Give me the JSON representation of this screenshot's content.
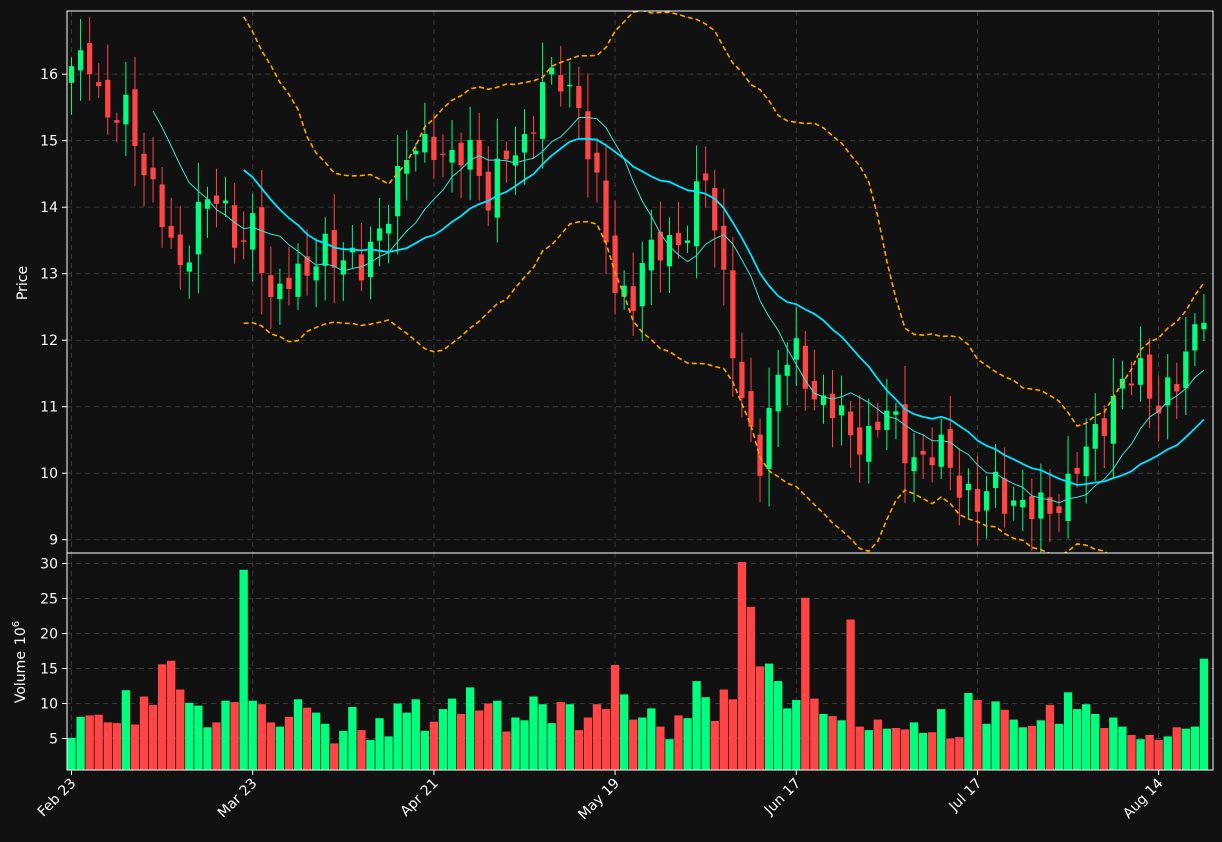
{
  "colors": {
    "background": "#111111",
    "grid": "#3a3a3a",
    "up": "#00ff7f",
    "down": "#ff4545",
    "ma_slow": "#00e5ff",
    "ma_fast": "#40e0d0",
    "bands": "#ffa500",
    "axis": "#ffffff"
  },
  "chart_data": {
    "type": "candlestick",
    "grid": true,
    "price_panel": {
      "ylabel": "Price",
      "yticks": [
        9,
        10,
        11,
        12,
        13,
        14,
        15,
        16
      ],
      "ylim": [
        8.8,
        16.95
      ]
    },
    "volume_panel": {
      "ylabel": "Volume",
      "ylabel_exp": "10",
      "ylabel_sup": "6",
      "yticks": [
        5,
        10,
        15,
        20,
        25,
        30
      ],
      "ylim": [
        0.5,
        31.5
      ]
    },
    "x_labels": [
      "Feb 23",
      "Mar 23",
      "Apr 21",
      "May 19",
      "Jun 17",
      "Jul 17",
      "Aug 14"
    ],
    "x_label_index": [
      0,
      20,
      40,
      60,
      80,
      100,
      120
    ],
    "n_bars": 126,
    "anchors": [
      [
        0,
        16.0
      ],
      [
        2,
        16.3
      ],
      [
        4,
        15.3
      ],
      [
        6,
        15.4
      ],
      [
        8,
        14.7
      ],
      [
        10,
        13.8
      ],
      [
        12,
        13.0
      ],
      [
        14,
        14.0
      ],
      [
        16,
        14.1
      ],
      [
        18,
        13.6
      ],
      [
        20,
        13.7
      ],
      [
        22,
        12.5
      ],
      [
        24,
        13.1
      ],
      [
        26,
        12.9
      ],
      [
        28,
        13.4
      ],
      [
        30,
        13.3
      ],
      [
        32,
        13.0
      ],
      [
        34,
        13.7
      ],
      [
        36,
        14.4
      ],
      [
        38,
        14.9
      ],
      [
        40,
        15.0
      ],
      [
        42,
        14.6
      ],
      [
        44,
        14.9
      ],
      [
        46,
        14.2
      ],
      [
        48,
        14.7
      ],
      [
        50,
        15.0
      ],
      [
        52,
        15.8
      ],
      [
        54,
        15.9
      ],
      [
        56,
        15.6
      ],
      [
        58,
        14.2
      ],
      [
        60,
        12.8
      ],
      [
        62,
        12.7
      ],
      [
        64,
        13.3
      ],
      [
        66,
        13.5
      ],
      [
        68,
        13.6
      ],
      [
        70,
        14.5
      ],
      [
        72,
        13.0
      ],
      [
        74,
        10.9
      ],
      [
        76,
        10.2
      ],
      [
        78,
        11.6
      ],
      [
        80,
        11.7
      ],
      [
        82,
        11.2
      ],
      [
        84,
        11.0
      ],
      [
        86,
        10.5
      ],
      [
        88,
        10.6
      ],
      [
        90,
        10.9
      ],
      [
        92,
        10.4
      ],
      [
        94,
        10.2
      ],
      [
        96,
        10.3
      ],
      [
        98,
        9.9
      ],
      [
        100,
        9.5
      ],
      [
        102,
        9.8
      ],
      [
        104,
        9.6
      ],
      [
        106,
        9.4
      ],
      [
        108,
        9.5
      ],
      [
        110,
        9.8
      ],
      [
        112,
        10.3
      ],
      [
        114,
        10.9
      ],
      [
        116,
        11.3
      ],
      [
        118,
        11.5
      ],
      [
        120,
        11.1
      ],
      [
        122,
        11.3
      ],
      [
        125,
        12.6
      ]
    ],
    "volume_millions": [
      5.1,
      8.1,
      8.3,
      8.4,
      7.3,
      7.2,
      11.9,
      7.0,
      11.0,
      9.8,
      15.6,
      16.1,
      12.0,
      10.1,
      9.7,
      6.6,
      7.3,
      10.4,
      10.2,
      29.1,
      10.4,
      9.9,
      7.3,
      6.7,
      8.1,
      10.6,
      9.4,
      8.7,
      7.1,
      4.3,
      6.1,
      9.5,
      6.2,
      4.8,
      7.9,
      5.3,
      10.0,
      8.7,
      10.6,
      6.1,
      7.4,
      9.2,
      10.7,
      8.5,
      12.3,
      9.0,
      10.0,
      10.4,
      6.0,
      8.0,
      7.6,
      11.0,
      9.9,
      7.2,
      10.2,
      9.9,
      6.2,
      8.0,
      9.9,
      9.2,
      15.5,
      11.3,
      7.7,
      8.0,
      9.3,
      6.7,
      4.9,
      8.3,
      7.9,
      13.2,
      10.9,
      7.5,
      12.0,
      10.6,
      30.2,
      23.8,
      15.3,
      15.7,
      13.2,
      9.3,
      10.5,
      25.1,
      10.7,
      8.5,
      8.2,
      7.6,
      22.0,
      6.7,
      6.2,
      7.7,
      6.4,
      6.5,
      6.3,
      7.3,
      5.8,
      5.9,
      9.2,
      5.0,
      5.2,
      11.5,
      10.5,
      7.1,
      10.3,
      9.1,
      7.7,
      6.6,
      6.8,
      7.6,
      9.8,
      7.1,
      11.6,
      9.2,
      9.9,
      8.5,
      6.5,
      8.0,
      6.7,
      5.5,
      4.9,
      5.5,
      4.8,
      5.3,
      6.6,
      6.4,
      6.7,
      16.4
    ],
    "overlays": [
      "moving-average-fast",
      "moving-average-slow",
      "upper-band",
      "lower-band"
    ]
  }
}
